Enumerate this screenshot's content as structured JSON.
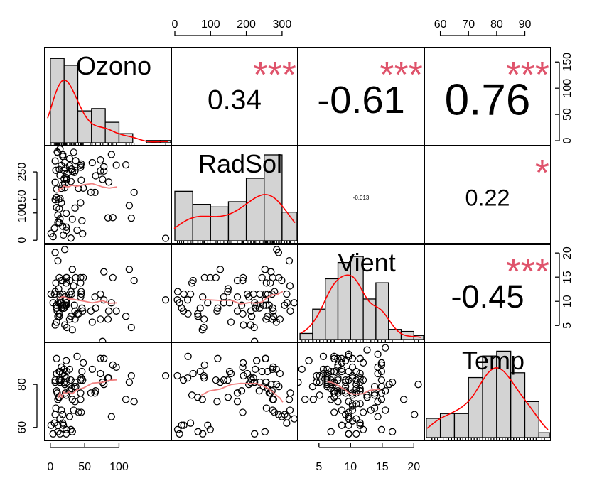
{
  "chart_data": {
    "type": "scatter",
    "title": "",
    "variables": [
      "Ozono",
      "RadSol",
      "Vient",
      "Temp"
    ],
    "axis_ticks": {
      "Ozono": [
        0,
        50,
        100,
        150
      ],
      "RadSol": [
        0,
        100,
        200,
        300
      ],
      "Vient": [
        5,
        10,
        15,
        20
      ],
      "Temp": [
        60,
        70,
        80,
        90
      ]
    },
    "axis_ranges": {
      "Ozono": [
        -4,
        172
      ],
      "RadSol": [
        -2,
        336
      ],
      "Vient": [
        2.1,
        21.2
      ],
      "Temp": [
        55.3,
        98.2
      ]
    },
    "axis_tick_labels": {
      "top": [
        "0",
        "100",
        "200",
        "300",
        "60",
        "70",
        "80",
        "90"
      ],
      "bottom": [
        "0",
        "50",
        "100",
        "5",
        "10",
        "15",
        "20"
      ],
      "left": [
        "0",
        "100",
        "150",
        "250",
        "60",
        "80"
      ],
      "right": [
        "0",
        "50",
        "100",
        "150",
        "5",
        "10",
        "15",
        "20"
      ]
    },
    "correlations": [
      {
        "pair": [
          "Ozono",
          "RadSol"
        ],
        "r_text": "0.34",
        "stars": "***",
        "r": 0.34
      },
      {
        "pair": [
          "Ozono",
          "Vient"
        ],
        "r_text": "-0.61",
        "stars": "***",
        "r": -0.61
      },
      {
        "pair": [
          "Ozono",
          "Temp"
        ],
        "r_text": "0.76",
        "stars": "***",
        "r": 0.76
      },
      {
        "pair": [
          "RadSol",
          "Vient"
        ],
        "r_text": "-0.013",
        "stars": "",
        "r": -0.013
      },
      {
        "pair": [
          "RadSol",
          "Temp"
        ],
        "r_text": "0.22",
        "stars": "*",
        "r": 0.22
      },
      {
        "pair": [
          "Vient",
          "Temp"
        ],
        "r_text": "-0.45",
        "stars": "***",
        "r": -0.45
      }
    ],
    "histograms": {
      "Ozono": {
        "breaks": [
          0,
          20,
          40,
          60,
          80,
          100,
          120,
          140,
          160,
          180
        ],
        "counts": [
          37,
          34,
          14,
          15,
          9,
          4,
          0,
          1,
          1
        ],
        "ymax": 40
      },
      "RadSol": {
        "breaks": [
          0,
          50,
          100,
          150,
          200,
          250,
          300,
          350
        ],
        "counts": [
          19,
          14,
          13,
          15,
          24,
          33,
          11
        ],
        "ymax": 35
      },
      "Vient": {
        "breaks": [
          0,
          2,
          4,
          6,
          8,
          10,
          12,
          14,
          16,
          18,
          20,
          22
        ],
        "counts": [
          0,
          3,
          15,
          30,
          38,
          41,
          20,
          28,
          5,
          4,
          2
        ],
        "ymax": 45
      },
      "Temp": {
        "breaks": [
          55,
          60,
          65,
          70,
          75,
          80,
          85,
          90,
          95,
          100
        ],
        "counts": [
          8,
          10,
          10,
          25,
          34,
          36,
          27,
          15,
          2
        ],
        "ymax": 38
      }
    },
    "scatter": {
      "Ozono": [
        41,
        36,
        12,
        18,
        28,
        23,
        19,
        8,
        7,
        16,
        11,
        14,
        18,
        14,
        34,
        6,
        30,
        11,
        1,
        11,
        4,
        32,
        23,
        45,
        115,
        37,
        10,
        7,
        48,
        61,
        39,
        9,
        16,
        78,
        35,
        66,
        122,
        89,
        110,
        44,
        28,
        65,
        22,
        59,
        23,
        31,
        44,
        21,
        9,
        45,
        168,
        73,
        76,
        118,
        84,
        85,
        96,
        78,
        73,
        91,
        47,
        32,
        20,
        23,
        21,
        24,
        44,
        21,
        28,
        9,
        13,
        46,
        18,
        13,
        24,
        16,
        13,
        23,
        36,
        7,
        14,
        30,
        14,
        18,
        20
      ],
      "RadSol": [
        190,
        118,
        149,
        313,
        299,
        99,
        19,
        256,
        290,
        274,
        65,
        334,
        307,
        78,
        322,
        44,
        8,
        320,
        25,
        92,
        13,
        252,
        223,
        279,
        127,
        291,
        323,
        148,
        191,
        284,
        37,
        120,
        137,
        269,
        248,
        236,
        175,
        314,
        276,
        267,
        272,
        175,
        264,
        175,
        48,
        260,
        274,
        285,
        187,
        220,
        7,
        294,
        223,
        81,
        82,
        213,
        275,
        253,
        254,
        83,
        24,
        77,
        255,
        229,
        207,
        222,
        137,
        192,
        273,
        157,
        64,
        71,
        51,
        115,
        244,
        190,
        259,
        36,
        255,
        212,
        238,
        215,
        153,
        203,
        225
      ],
      "Vient": [
        7.4,
        8.0,
        12.6,
        11.5,
        14.3,
        14.9,
        8.6,
        13.8,
        20.1,
        8.6,
        6.9,
        9.7,
        9.2,
        10.9,
        13.2,
        11.5,
        12.0,
        18.4,
        11.5,
        9.7,
        9.7,
        16.6,
        9.7,
        12.0,
        16.6,
        14.9,
        8.0,
        12.0,
        14.9,
        5.7,
        7.4,
        8.6,
        9.7,
        16.1,
        9.2,
        8.6,
        14.3,
        9.7,
        6.9,
        13.8,
        11.5,
        10.9,
        9.2,
        8.0,
        13.8,
        11.5,
        14.9,
        20.7,
        9.2,
        11.5,
        10.3,
        6.3,
        1.7,
        4.6,
        6.3,
        8.0,
        8.0,
        10.3,
        11.5,
        14.9,
        8.0,
        4.1,
        9.2,
        9.2,
        10.9,
        4.6,
        10.9,
        5.1,
        6.3,
        5.7,
        7.4,
        8.6,
        14.3,
        14.9,
        14.9,
        14.3,
        6.9,
        10.3,
        6.3,
        5.1,
        11.5,
        6.9,
        9.7,
        11.5,
        8.6,
        8.0,
        8.6,
        12.0,
        7.4,
        7.4,
        7.4,
        9.2,
        6.9,
        13.8,
        7.4,
        4.0,
        10.3,
        8.0,
        11.5,
        11.5,
        9.7,
        10.3,
        6.3,
        7.4,
        10.9,
        10.3,
        15.5,
        14.3,
        12.6,
        9.7,
        3.4,
        8.0,
        5.7,
        9.7,
        2.3,
        6.3,
        6.3,
        6.9,
        5.1,
        2.8,
        4.6,
        7.4,
        15.5,
        10.9,
        10.3,
        10.9,
        9.7,
        14.9,
        15.5,
        6.3,
        10.9,
        11.5,
        6.9,
        13.8,
        10.3,
        10.3,
        8.0,
        12.6,
        9.2,
        10.3,
        10.3,
        16.6,
        6.9,
        13.2,
        14.3,
        8.0,
        11.5
      ],
      "Temp": [
        67,
        72,
        74,
        62,
        65,
        59,
        61,
        69,
        66,
        68,
        58,
        64,
        66,
        57,
        68,
        62,
        59,
        73,
        61,
        61,
        57,
        58,
        57,
        67,
        81,
        79,
        76,
        82,
        90,
        87,
        93,
        92,
        82,
        80,
        79,
        77,
        72,
        65,
        73,
        76,
        77,
        76,
        76,
        76,
        75,
        78,
        73,
        80,
        77,
        83,
        84,
        85,
        81,
        84,
        83,
        83,
        88,
        92,
        92,
        89,
        82,
        73,
        81,
        91,
        80,
        81,
        82,
        84,
        87,
        85,
        74,
        86,
        85,
        82,
        86,
        88,
        86,
        83,
        81,
        81,
        81,
        82,
        86,
        85,
        87,
        89,
        90,
        90,
        92,
        86,
        86,
        82,
        80,
        79,
        77,
        79,
        76,
        78,
        78,
        77,
        72,
        75,
        79,
        81,
        86,
        88,
        97,
        94,
        96,
        94,
        91,
        92,
        93,
        93,
        87,
        84,
        80,
        78,
        75,
        73,
        81,
        76,
        77,
        71,
        71,
        78,
        67,
        76,
        68,
        82,
        64,
        71,
        81,
        69,
        63,
        70,
        77,
        75,
        76,
        68
      ]
    }
  }
}
